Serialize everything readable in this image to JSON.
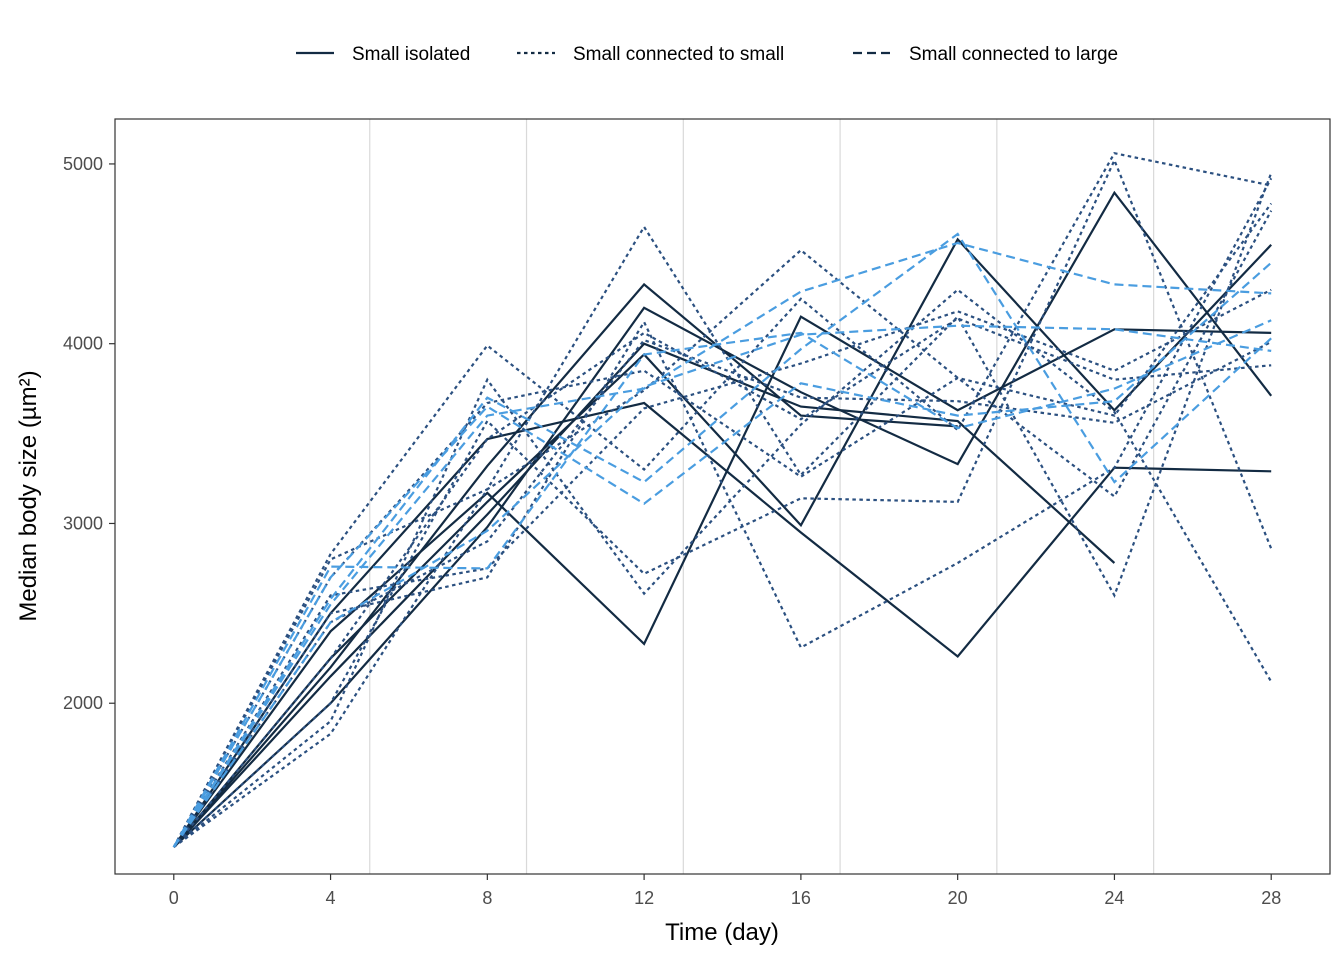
{
  "chart_data": {
    "type": "line",
    "title": "",
    "xlabel": "Time (day)",
    "ylabel": "Median body size (µm²)",
    "xlim": [
      -1.5,
      29.5
    ],
    "ylim": [
      1050,
      5250
    ],
    "x_ticks": [
      0,
      4,
      8,
      12,
      16,
      20,
      24,
      28
    ],
    "y_ticks": [
      2000,
      3000,
      4000,
      5000
    ],
    "vertical_gridlines_at": [
      5,
      9,
      13,
      17,
      21,
      25
    ],
    "grid": "vertical only",
    "legend_position": "top",
    "legend": [
      {
        "label": "Small isolated",
        "dash": "solid"
      },
      {
        "label": "Small connected to small",
        "dash": "dotted"
      },
      {
        "label": "Small connected to large",
        "dash": "dashed"
      }
    ],
    "colors": {
      "small_isolated": "#132b43",
      "small_connected_to_small": "#2b5080",
      "small_connected_to_large": "#4a9de0",
      "gridline": "#d9d9d9",
      "panel_border": "#333333"
    },
    "x": [
      0,
      4,
      8,
      12,
      16,
      20,
      24,
      28
    ],
    "series": [
      {
        "group": "small_isolated",
        "values": [
          1200,
          2500,
          3470,
          3670,
          2950,
          2260,
          3310,
          3290
        ]
      },
      {
        "group": "small_isolated",
        "values": [
          1200,
          2400,
          3170,
          2330,
          4150,
          3630,
          4080,
          4060
        ]
      },
      {
        "group": "small_isolated",
        "values": [
          1200,
          2200,
          3320,
          4330,
          3600,
          3540,
          null,
          null
        ]
      },
      {
        "group": "small_isolated",
        "values": [
          1200,
          2000,
          2980,
          4200,
          3730,
          3330,
          4840,
          3710
        ]
      },
      {
        "group": "small_isolated",
        "values": [
          1200,
          2250,
          3120,
          3940,
          2990,
          4580,
          3630,
          4550
        ]
      },
      {
        "group": "small_isolated",
        "values": [
          1200,
          2150,
          3050,
          4000,
          3650,
          3570,
          2780,
          null
        ]
      },
      {
        "group": "small_connected_to_small",
        "values": [
          1200,
          2830,
          3990,
          3300,
          4250,
          3520,
          5060,
          4880
        ]
      },
      {
        "group": "small_connected_to_small",
        "values": [
          1200,
          2800,
          3190,
          4650,
          3270,
          4150,
          2600,
          4950
        ]
      },
      {
        "group": "small_connected_to_small",
        "values": [
          1200,
          2500,
          2700,
          4120,
          2310,
          2780,
          3310,
          4920
        ]
      },
      {
        "group": "small_connected_to_small",
        "values": [
          1200,
          2000,
          3570,
          2720,
          3140,
          3120,
          5020,
          2860
        ]
      },
      {
        "group": "small_connected_to_small",
        "values": [
          1200,
          1830,
          3190,
          3740,
          4520,
          3810,
          3150,
          4740
        ]
      },
      {
        "group": "small_connected_to_small",
        "values": [
          1200,
          1900,
          3800,
          2610,
          3550,
          4300,
          3620,
          2120
        ]
      },
      {
        "group": "small_connected_to_small",
        "values": [
          1200,
          2250,
          3470,
          4060,
          3580,
          4140,
          3800,
          3880
        ]
      },
      {
        "group": "small_connected_to_small",
        "values": [
          1200,
          2600,
          2750,
          3640,
          3890,
          4180,
          3850,
          4300
        ]
      },
      {
        "group": "small_connected_to_small",
        "values": [
          1200,
          2700,
          3670,
          3850,
          3260,
          3810,
          3600,
          4780
        ]
      },
      {
        "group": "small_connected_to_small",
        "values": [
          1200,
          2450,
          2900,
          4020,
          3700,
          3680,
          3560,
          4010
        ]
      },
      {
        "group": "small_connected_to_large",
        "values": [
          1200,
          2760,
          2750,
          3940,
          4060,
          3530,
          3750,
          4130
        ]
      },
      {
        "group": "small_connected_to_large",
        "values": [
          1200,
          2580,
          3700,
          3230,
          3970,
          4610,
          3230,
          4030
        ]
      },
      {
        "group": "small_connected_to_large",
        "values": [
          1200,
          2550,
          3600,
          3750,
          4290,
          4560,
          4330,
          4280
        ]
      },
      {
        "group": "small_connected_to_large",
        "values": [
          1200,
          2700,
          3650,
          3110,
          3780,
          3600,
          3680,
          4450
        ]
      },
      {
        "group": "small_connected_to_large",
        "values": [
          1200,
          2450,
          2960,
          3760,
          4050,
          4100,
          4080,
          3960
        ]
      }
    ]
  }
}
